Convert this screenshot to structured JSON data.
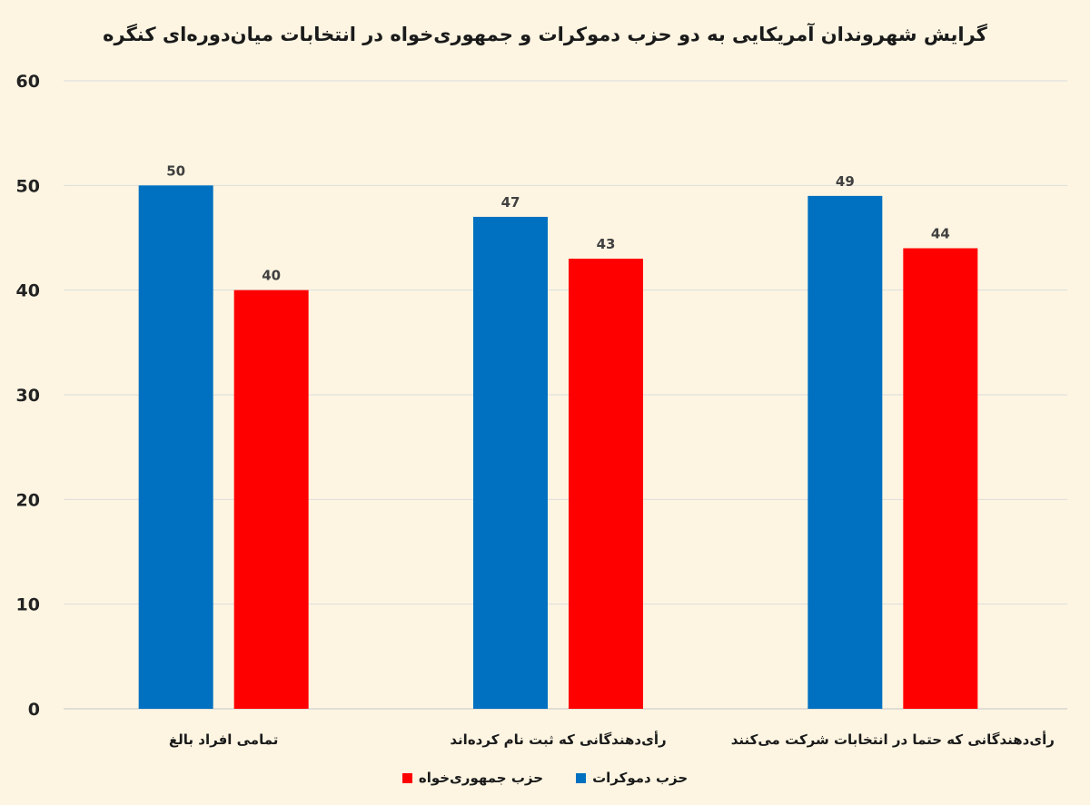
{
  "chart_data": {
    "type": "bar",
    "title": "گرایش شهروندان آمریکایی به دو حزب دموکرات و جمهوری‌خواه  در انتخابات میان‌دوره‌ای کنگره",
    "categories": [
      "تمامی افراد بالغ",
      "رأی‌دهندگانی که ثبت نام کرده‌اند",
      "رأی‌دهندگانی که حتما در انتخابات شرکت می‌کنند"
    ],
    "series": [
      {
        "name": "حزب دموکرات",
        "color": "#0070c0",
        "values": [
          50,
          47,
          49
        ]
      },
      {
        "name": "حزب جمهوری‌خواه",
        "color": "#ff0000",
        "values": [
          40,
          43,
          44
        ]
      }
    ],
    "ylim": [
      0,
      60
    ],
    "yticks": [
      0,
      10,
      20,
      30,
      40,
      50,
      60
    ],
    "xlabel": "",
    "ylabel": "",
    "grid": true,
    "legend_position": "bottom"
  }
}
